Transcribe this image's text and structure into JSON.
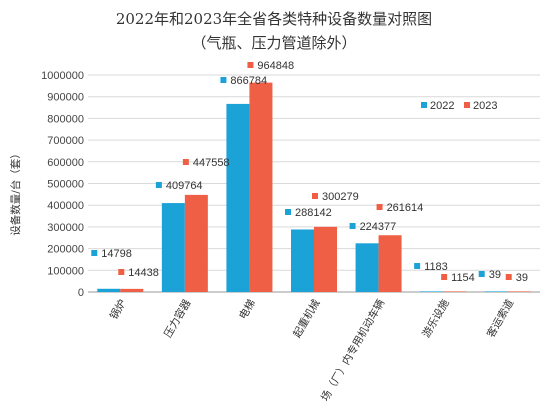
{
  "chart_data": {
    "type": "bar",
    "title": "2022年和2023年全省各类特种设备数量对照图",
    "subtitle": "（气瓶、压力管道除外）",
    "ylabel": "设备数量/台（套）",
    "xlabel": "",
    "ylim": [
      0,
      1000000
    ],
    "ytick_step": 100000,
    "yticks": [
      "0",
      "100000",
      "200000",
      "300000",
      "400000",
      "500000",
      "600000",
      "700000",
      "800000",
      "900000",
      "1000000"
    ],
    "grid": true,
    "legend_position": "top-right",
    "categories": [
      "锅炉",
      "压力容器",
      "电梯",
      "起重机械",
      "场（厂）内专用机动车辆",
      "游乐设施",
      "客运索道"
    ],
    "series": [
      {
        "name": "2022",
        "color": "#1BA3D8",
        "values": [
          14798,
          409764,
          866784,
          288142,
          224377,
          1183,
          39
        ],
        "labels": [
          "14798",
          "409764",
          "866784",
          "288142",
          "224377",
          "1183",
          "39"
        ]
      },
      {
        "name": "2023",
        "color": "#EE5F45",
        "values": [
          14438,
          447558,
          964848,
          300279,
          261614,
          1154,
          39
        ],
        "labels": [
          "14438",
          "447558",
          "964848",
          "300279",
          "261614",
          "1154",
          "39"
        ]
      }
    ]
  }
}
